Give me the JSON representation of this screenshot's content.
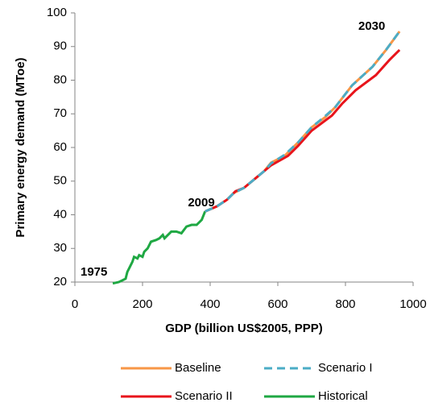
{
  "chart_data": {
    "type": "line",
    "x_label": "GDP (billion US$2005, PPP)",
    "y_label": "Primary energy demand (MToe)",
    "xlim": [
      0,
      1000
    ],
    "xticks": [
      0,
      200,
      400,
      600,
      800,
      1000
    ],
    "ylim": [
      20,
      100
    ],
    "yticks": [
      20,
      30,
      40,
      50,
      60,
      70,
      80,
      90,
      100
    ],
    "annotations": [
      "1975",
      "2009",
      "2030"
    ],
    "series": [
      {
        "name": "Baseline",
        "color": "#f79646",
        "dash": false,
        "x": [
          385,
          420,
          450,
          470,
          500,
          530,
          560,
          580,
          620,
          660,
          700,
          740,
          770,
          820,
          880,
          920,
          960
        ],
        "values": [
          41,
          42.5,
          44.5,
          46.5,
          48,
          50.5,
          53,
          55.5,
          57.5,
          61.5,
          66,
          69,
          72,
          78.5,
          84,
          89,
          94.5
        ]
      },
      {
        "name": "Scenario I",
        "color": "#4bacc6",
        "dash": true,
        "x": [
          385,
          420,
          450,
          470,
          500,
          530,
          560,
          580,
          620,
          660,
          700,
          740,
          770,
          820,
          880,
          920,
          960
        ],
        "values": [
          41,
          42.5,
          44.5,
          46.5,
          48,
          50.5,
          53,
          55.3,
          57.8,
          61.5,
          66,
          69.3,
          72,
          78.5,
          84,
          89,
          94.5
        ]
      },
      {
        "name": "Scenario II",
        "color": "#e8141b",
        "dash": false,
        "x": [
          385,
          420,
          450,
          475,
          500,
          530,
          560,
          580,
          630,
          660,
          700,
          760,
          790,
          830,
          890,
          930,
          960
        ],
        "values": [
          41,
          42.5,
          44.5,
          47,
          48,
          50.5,
          53,
          54.7,
          57.5,
          60.5,
          65,
          69.5,
          73,
          77,
          81.5,
          86,
          89
        ]
      },
      {
        "name": "Historical",
        "color": "#1fa843",
        "dash": false,
        "x": [
          112,
          130,
          140,
          150,
          155,
          160,
          170,
          175,
          185,
          190,
          200,
          205,
          215,
          225,
          240,
          250,
          260,
          265,
          275,
          285,
          300,
          315,
          330,
          345,
          360,
          375,
          385
        ],
        "values": [
          19.6,
          20,
          20.5,
          21,
          23,
          24,
          26,
          27.5,
          27,
          28,
          27.5,
          29,
          30,
          32,
          32.5,
          33,
          34,
          33,
          34,
          35,
          35,
          34.5,
          36.5,
          37,
          37,
          38.5,
          41
        ]
      }
    ]
  }
}
